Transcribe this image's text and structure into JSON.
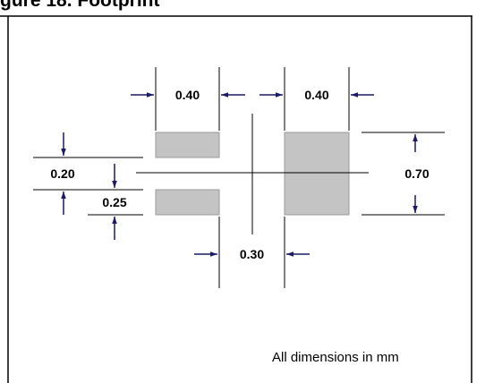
{
  "header": {
    "title_fragment": "gure 18. Footprint"
  },
  "diagram": {
    "dimensions": {
      "left_pad_width": "0.40",
      "right_pad_width": "0.40",
      "total_height": "0.20",
      "pad_height": "0.25",
      "large_pad_height": "0.70",
      "gap": "0.30"
    },
    "note": "All dimensions in mm",
    "colors": {
      "pad_fill": "#c4c4c4",
      "pad_stroke": "#999999",
      "arrow": "#1a1a66",
      "line": "#000000"
    }
  }
}
